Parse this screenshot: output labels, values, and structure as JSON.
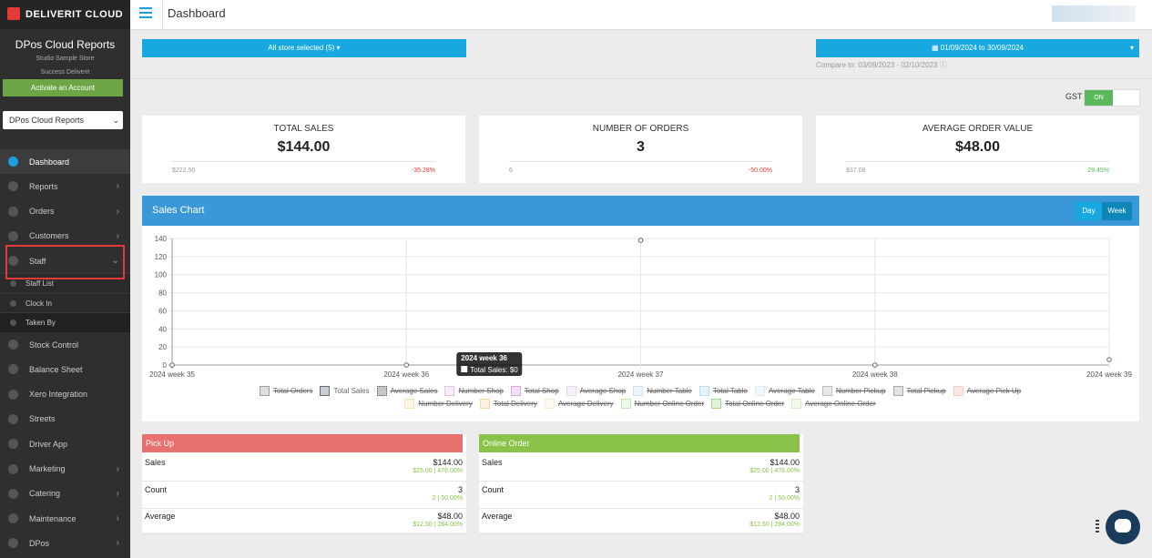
{
  "brand": "DELIVERIT CLOUD",
  "sidebar": {
    "title": "DPos Cloud Reports",
    "store": "Studio Sample Store",
    "subtitle": "Success Deliverit",
    "activate": "Activate an Account",
    "select": "DPos Cloud Reports",
    "menu": [
      "Dashboard",
      "Reports",
      "Orders",
      "Customers",
      "Staff"
    ],
    "submenu": [
      "Staff List",
      "Clock In",
      "Taken By"
    ],
    "menu_more": [
      "Stock Control",
      "Balance Sheet",
      "Xero Integration",
      "Streets",
      "Driver App",
      "Marketing",
      "Catering",
      "Maintenance",
      "DPos"
    ]
  },
  "header": {
    "title": "Dashboard"
  },
  "filters": {
    "store": "All store selected (5)",
    "date": "01/09/2024 to 30/09/2024",
    "compare": "Compare to: 03/09/2023 - 02/10/2023"
  },
  "gst": {
    "label": "GST",
    "toggle": "ON"
  },
  "kpis": [
    {
      "title": "TOTAL SALES",
      "value": "$144.00",
      "previous": "$222.50",
      "change": "-35.28%"
    },
    {
      "title": "NUMBER OF ORDERS",
      "value": "3",
      "previous": "6",
      "change": "-50.00%"
    },
    {
      "title": "AVERAGE ORDER VALUE",
      "value": "$48.00",
      "previous": "$37.08",
      "change": "29.45%"
    }
  ],
  "chart_data": {
    "type": "line",
    "title": "Sales Chart",
    "buttons": [
      "Day",
      "Week"
    ],
    "categories": [
      "2024 week 35",
      "2024 week 36",
      "2024 week 37",
      "2024 week 38",
      "2024 week 39"
    ],
    "ylim": [
      0,
      140
    ],
    "yticks": [
      0,
      20,
      40,
      60,
      80,
      100,
      120,
      140
    ],
    "grid": true,
    "series": [
      {
        "name": "Total Orders",
        "color": "#9e9e9e",
        "hidden": true
      },
      {
        "name": "Total Sales",
        "color": "#646b78",
        "values": [
          0,
          0,
          138,
          0,
          6
        ]
      },
      {
        "name": "Average Sales",
        "color": "#555555",
        "hidden": true
      },
      {
        "name": "Number Shop",
        "color": "#e6c3e6",
        "hidden": true
      },
      {
        "name": "Total Shop",
        "color": "#d9a8e0",
        "hidden": true
      },
      {
        "name": "Average Shop",
        "color": "#e8d9f0",
        "hidden": true
      },
      {
        "name": "Number Table",
        "color": "#c8e2f0",
        "hidden": true
      },
      {
        "name": "Total Table",
        "color": "#b7dcf0",
        "hidden": true
      },
      {
        "name": "Average Table",
        "color": "#d9ecf5",
        "hidden": true
      },
      {
        "name": "Number Pickup",
        "color": "#bdbdbd",
        "hidden": true
      },
      {
        "name": "Total Pickup",
        "color": "#a8a8a8",
        "hidden": true
      },
      {
        "name": "Average Pick Up",
        "color": "#f2b8a8",
        "hidden": true
      },
      {
        "name": "Number Delivery",
        "color": "#f5e3b3",
        "hidden": true
      },
      {
        "name": "Total Delivery",
        "color": "#f2d8a0",
        "hidden": true
      },
      {
        "name": "Average Delivery",
        "color": "#f5ecd0",
        "hidden": true
      },
      {
        "name": "Number Online Order",
        "color": "#c8e6b0",
        "hidden": true
      },
      {
        "name": "Total Online Order",
        "color": "#a8d890",
        "hidden": true
      },
      {
        "name": "Average Online Order",
        "color": "#d8ecc8",
        "hidden": true
      }
    ],
    "tooltip": {
      "title": "2024 week 36",
      "label": "Total Sales: $0"
    }
  },
  "panels": [
    {
      "title": "Pick Up",
      "rows": [
        {
          "label": "Sales",
          "value": "$144.00",
          "detail": "$25.00 | 476.00%"
        },
        {
          "label": "Count",
          "value": "3",
          "detail": "2 | 50.00%"
        },
        {
          "label": "Average",
          "value": "$48.00",
          "detail": "$12.50 | 284.00%"
        }
      ]
    },
    {
      "title": "Online Order",
      "rows": [
        {
          "label": "Sales",
          "value": "$144.00",
          "detail": "$25.00 | 476.00%"
        },
        {
          "label": "Count",
          "value": "3",
          "detail": "2 | 50.00%"
        },
        {
          "label": "Average",
          "value": "$48.00",
          "detail": "$12.50 | 284.00%"
        }
      ]
    }
  ]
}
